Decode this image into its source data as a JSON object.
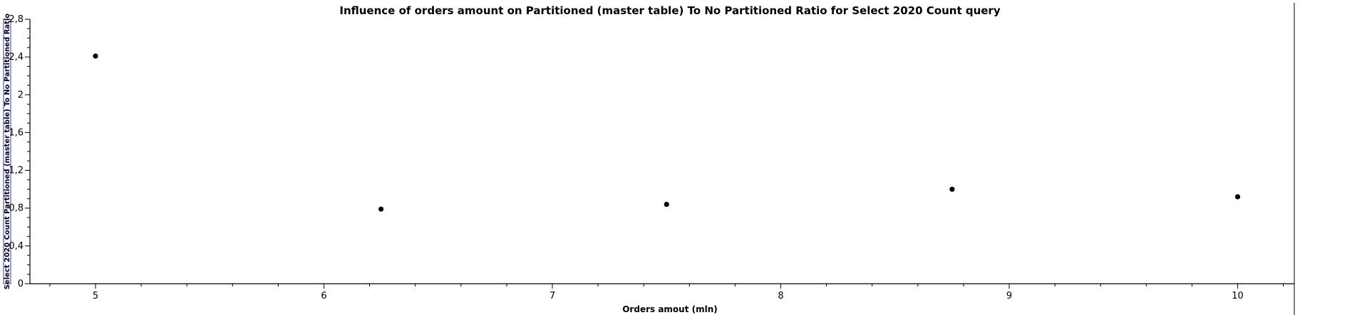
{
  "chart_data": {
    "type": "scatter",
    "title": "Influence of orders amount on Partitioned (master table) To No Partitioned Ratio for Select 2020 Count query",
    "xlabel": "Orders amout (mln)",
    "ylabel": "Select 2020 Count Partitioned (master table) To No Partitioned Ratio",
    "xlim": [
      4.8,
      10.2
    ],
    "ylim": [
      0,
      2.8
    ],
    "x_ticks": [
      "5",
      "6",
      "7",
      "8",
      "9",
      "10"
    ],
    "y_ticks": [
      "0",
      "0,4",
      "0,8",
      "1,2",
      "1,6",
      "2",
      "2,4",
      "2,8"
    ],
    "grid": false,
    "legend": "none",
    "series": [
      {
        "x": [
          5,
          6.25,
          7.5,
          8.75,
          10
        ],
        "y": [
          2.41,
          0.79,
          0.84,
          1.0,
          0.92
        ]
      }
    ],
    "colors": {
      "point": "#000000",
      "ylabel_box": "#3333cc"
    }
  }
}
